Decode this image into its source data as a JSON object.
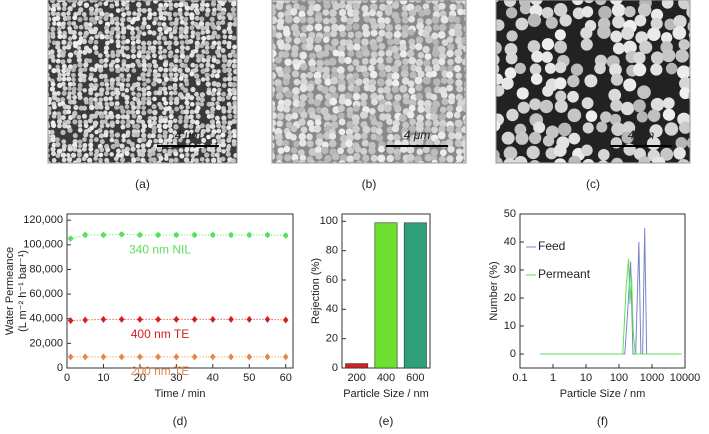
{
  "images": [
    {
      "label": "(a)",
      "scale_bar": "4 μm"
    },
    {
      "label": "(b)",
      "scale_bar": "4 μm"
    },
    {
      "label": "(c)",
      "scale_bar": "4 μm"
    }
  ],
  "chart_data": [
    {
      "type": "scatter",
      "label": "(d)",
      "x_label": "Time / min",
      "y_label": [
        "Water Permeance",
        "(L m⁻² h⁻¹ bar⁻¹)"
      ],
      "xlim": [
        0,
        62
      ],
      "xticks": [
        0,
        10,
        20,
        30,
        40,
        50,
        60
      ],
      "ylim": [
        0,
        125000
      ],
      "yticks": [
        0,
        {
          "value": 20000,
          "label": "20,000"
        },
        {
          "value": 40000,
          "label": "40,000"
        },
        {
          "value": 60000,
          "label": "60,000"
        },
        {
          "value": 80000,
          "label": "80,000"
        },
        {
          "value": 100000,
          "label": "100,000"
        },
        {
          "value": 120000,
          "label": "120,000"
        }
      ],
      "x": [
        1,
        5,
        10,
        15,
        20,
        25,
        30,
        35,
        40,
        45,
        50,
        55,
        60
      ],
      "series": [
        {
          "name": "340 nm NIL",
          "color": "#5be05b",
          "marker": "circle",
          "values": [
            105000,
            108000,
            108000,
            108500,
            108000,
            108000,
            108000,
            108000,
            108000,
            108000,
            108000,
            108000,
            107500
          ],
          "errors": [
            2500,
            2500,
            2500,
            2500,
            2500,
            2500,
            2500,
            2500,
            2500,
            2500,
            2500,
            2500,
            2500
          ]
        },
        {
          "name": "400 nm TE",
          "color": "#d42020",
          "marker": "diamond",
          "values": [
            38500,
            39000,
            39500,
            39500,
            39500,
            39500,
            39500,
            39500,
            39500,
            39500,
            39500,
            39500,
            39000
          ],
          "errors": [
            2000,
            2000,
            2000,
            2000,
            2000,
            2000,
            2000,
            2000,
            2000,
            2000,
            2000,
            2000,
            2000
          ]
        },
        {
          "name": "200 nm TE",
          "color": "#e8854a",
          "marker": "diamond",
          "values": [
            9000,
            9000,
            9000,
            9000,
            9000,
            9000,
            9000,
            9000,
            9000,
            9000,
            9000,
            9000,
            9000
          ],
          "errors": [
            800,
            800,
            800,
            800,
            800,
            800,
            800,
            800,
            800,
            800,
            800,
            800,
            800
          ]
        }
      ]
    },
    {
      "type": "bar",
      "label": "(e)",
      "x_label": "Particle Size / nm",
      "y_label": "Rejection (%)",
      "categories": [
        "200",
        "400",
        "600"
      ],
      "values": [
        3,
        99,
        99
      ],
      "colors": [
        "#d42020",
        "#6ee030",
        "#2fa07a"
      ],
      "ylim": [
        0,
        105
      ],
      "yticks": [
        0,
        20,
        40,
        60,
        80,
        100
      ]
    },
    {
      "type": "line",
      "label": "(f)",
      "x_label": "Particle Size / nm",
      "y_label": "Number (%)",
      "log_x": true,
      "xlim": [
        0.1,
        10000
      ],
      "xticks": [
        0.1,
        1,
        10,
        100,
        1000,
        10000
      ],
      "ylim": [
        -5,
        50
      ],
      "yticks": [
        0,
        10,
        20,
        30,
        40,
        50
      ],
      "legend": "upper-left",
      "series": [
        {
          "name": "Feed",
          "color": "#7b84c8",
          "x": [
            0.4,
            150,
            190,
            225,
            265,
            320,
            400,
            460,
            520,
            600,
            690,
            8000
          ],
          "values": [
            0,
            0,
            18,
            33,
            0,
            0,
            40,
            0,
            0,
            45,
            0,
            0
          ]
        },
        {
          "name": "Permeant",
          "color": "#5be05b",
          "x": [
            0.4,
            130,
            165,
            195,
            215,
            240,
            270,
            310,
            8000
          ],
          "values": [
            0,
            0,
            24,
            34,
            18,
            28,
            8,
            0,
            0
          ]
        }
      ]
    }
  ]
}
